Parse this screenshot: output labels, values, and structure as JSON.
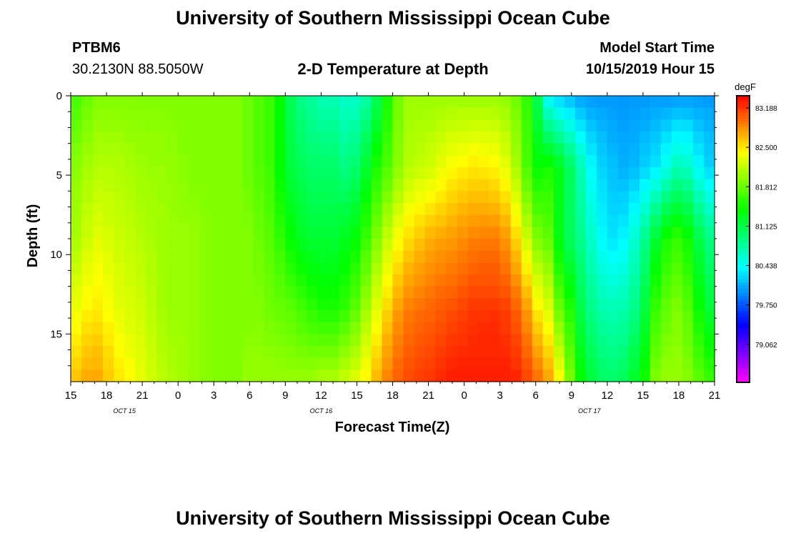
{
  "header": {
    "title": "University of Southern Mississippi Ocean Cube",
    "station_id": "PTBM6",
    "station_coords": "30.2130N 88.5050W",
    "model_start_label": "Model Start Time",
    "model_start_time": "10/15/2019 Hour 15"
  },
  "footer": {
    "title": "University of Southern Mississippi Ocean Cube"
  },
  "chart_data": {
    "type": "heatmap",
    "title": "2-D Temperature at Depth",
    "xlabel": "Forecast Time(Z)",
    "ylabel": "Depth (ft)",
    "x_range_hours": [
      0,
      54
    ],
    "y_range_ft": [
      0,
      18
    ],
    "x_ticks": [
      {
        "hour": 0,
        "label": "15"
      },
      {
        "hour": 3,
        "label": "18"
      },
      {
        "hour": 6,
        "label": "21"
      },
      {
        "hour": 9,
        "label": "0"
      },
      {
        "hour": 12,
        "label": "3"
      },
      {
        "hour": 15,
        "label": "6"
      },
      {
        "hour": 18,
        "label": "9"
      },
      {
        "hour": 21,
        "label": "12"
      },
      {
        "hour": 24,
        "label": "15"
      },
      {
        "hour": 27,
        "label": "18"
      },
      {
        "hour": 30,
        "label": "21"
      },
      {
        "hour": 33,
        "label": "0"
      },
      {
        "hour": 36,
        "label": "3"
      },
      {
        "hour": 39,
        "label": "6"
      },
      {
        "hour": 42,
        "label": "9"
      },
      {
        "hour": 45,
        "label": "12"
      },
      {
        "hour": 48,
        "label": "15"
      },
      {
        "hour": 51,
        "label": "18"
      },
      {
        "hour": 54,
        "label": "21"
      }
    ],
    "date_labels": [
      {
        "hour": 4.5,
        "label": "OCT 15"
      },
      {
        "hour": 21,
        "label": "OCT 16"
      },
      {
        "hour": 43.5,
        "label": "OCT 17"
      }
    ],
    "y_ticks": [
      0,
      5,
      10,
      15
    ],
    "colorbar": {
      "unit": "degF",
      "range": [
        78.4,
        83.4
      ],
      "tick_values": [
        83.188,
        82.5,
        81.812,
        81.125,
        80.438,
        79.75,
        79.062
      ],
      "tick_labels": [
        "83.188",
        "82.500",
        "81.812",
        "81.125",
        "80.438",
        "79.750",
        "79.062"
      ]
    },
    "hour_keys": [
      0,
      2,
      4,
      6,
      8,
      10,
      12,
      14,
      15,
      16,
      17,
      18,
      19,
      20,
      21,
      22,
      23,
      24,
      25,
      26,
      27,
      28,
      30,
      32,
      34,
      36,
      37,
      38,
      38.5,
      39,
      40,
      41,
      42,
      43,
      44,
      45,
      46,
      47,
      48,
      49,
      50,
      51,
      52,
      53,
      54
    ],
    "depth_keys": [
      0,
      4.5,
      9,
      13.5,
      18
    ],
    "temperature_degF": [
      [
        81.6,
        81.9,
        82.0,
        82.3,
        82.6
      ],
      [
        81.9,
        82.1,
        82.3,
        82.5,
        82.8
      ],
      [
        81.9,
        82.1,
        82.2,
        82.3,
        82.5
      ],
      [
        81.9,
        82.0,
        82.1,
        82.2,
        82.3
      ],
      [
        81.9,
        82.0,
        82.0,
        82.0,
        82.1
      ],
      [
        81.9,
        81.9,
        82.0,
        82.0,
        82.0
      ],
      [
        81.9,
        81.9,
        81.9,
        81.9,
        81.9
      ],
      [
        81.9,
        81.9,
        81.9,
        81.9,
        81.9
      ],
      [
        81.8,
        81.8,
        81.9,
        81.9,
        82.0
      ],
      [
        81.7,
        81.7,
        81.8,
        81.9,
        82.0
      ],
      [
        81.6,
        81.6,
        81.7,
        81.8,
        82.0
      ],
      [
        81.2,
        81.2,
        81.5,
        81.8,
        82.0
      ],
      [
        80.9,
        81.1,
        81.3,
        81.7,
        82.0
      ],
      [
        80.8,
        81.0,
        81.2,
        81.6,
        82.0
      ],
      [
        80.7,
        81.0,
        81.2,
        81.5,
        82.1
      ],
      [
        80.7,
        81.0,
        81.2,
        81.5,
        82.1
      ],
      [
        80.6,
        80.9,
        81.3,
        81.6,
        82.2
      ],
      [
        80.6,
        81.0,
        81.4,
        81.8,
        82.3
      ],
      [
        80.8,
        81.3,
        81.7,
        82.1,
        82.5
      ],
      [
        81.2,
        81.6,
        82.0,
        82.4,
        82.8
      ],
      [
        81.7,
        81.8,
        82.3,
        82.7,
        83.0
      ],
      [
        82.0,
        82.1,
        82.5,
        82.9,
        83.1
      ],
      [
        82.0,
        82.2,
        82.7,
        83.0,
        83.2
      ],
      [
        82.0,
        82.4,
        82.8,
        83.1,
        83.3
      ],
      [
        82.0,
        82.5,
        82.9,
        83.2,
        83.3
      ],
      [
        82.0,
        82.4,
        82.9,
        83.2,
        83.3
      ],
      [
        81.9,
        82.2,
        82.7,
        83.1,
        83.3
      ],
      [
        81.7,
        81.8,
        82.3,
        82.9,
        83.2
      ],
      [
        81.5,
        81.6,
        82.1,
        82.7,
        83.1
      ],
      [
        81.2,
        81.4,
        81.9,
        82.5,
        83.0
      ],
      [
        80.4,
        81.5,
        81.8,
        82.3,
        82.8
      ],
      [
        80.2,
        81.3,
        81.3,
        81.8,
        82.4
      ],
      [
        80.1,
        81.0,
        81.0,
        81.5,
        81.8
      ],
      [
        80.0,
        80.6,
        80.8,
        81.0,
        81.3
      ],
      [
        80.0,
        80.3,
        80.5,
        80.8,
        81.1
      ],
      [
        80.0,
        80.2,
        80.3,
        80.7,
        81.0
      ],
      [
        80.0,
        80.1,
        80.3,
        80.7,
        81.0
      ],
      [
        80.0,
        80.1,
        80.5,
        80.8,
        81.2
      ],
      [
        80.0,
        80.2,
        80.8,
        81.1,
        81.4
      ],
      [
        80.0,
        80.3,
        81.2,
        81.6,
        81.9
      ],
      [
        80.0,
        80.5,
        81.5,
        81.8,
        82.0
      ],
      [
        80.0,
        80.7,
        81.6,
        81.9,
        82.0
      ],
      [
        80.0,
        80.6,
        81.4,
        81.7,
        81.9
      ],
      [
        80.0,
        80.3,
        81.0,
        81.3,
        81.7
      ],
      [
        80.0,
        80.2,
        80.8,
        81.1,
        81.6
      ]
    ]
  }
}
